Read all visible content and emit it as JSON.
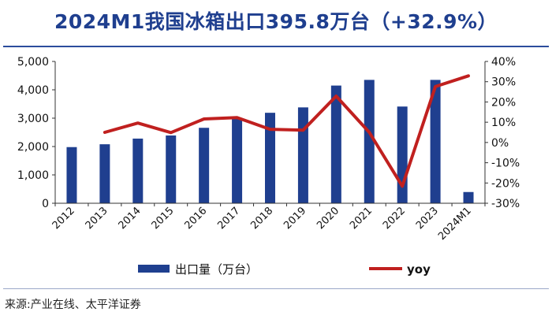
{
  "title": "2024M1我国冰箱出口395.8万台（+32.9%）",
  "source": "来源:产业在线、太平洋证券",
  "colors": {
    "bar": "#1f3f8f",
    "line": "#c0201f",
    "title": "#1f3f8f"
  },
  "chart_data": {
    "type": "bar",
    "title": "",
    "categories": [
      "2012",
      "2013",
      "2014",
      "2015",
      "2016",
      "2017",
      "2018",
      "2019",
      "2020",
      "2021",
      "2022",
      "2023",
      "2024M1"
    ],
    "series": [
      {
        "name": "出口量（万台）",
        "type": "bar",
        "axis": "left",
        "values": [
          1980,
          2080,
          2280,
          2390,
          2660,
          3010,
          3190,
          3380,
          4150,
          4350,
          3410,
          4350,
          396
        ]
      },
      {
        "name": "yoy",
        "type": "line",
        "axis": "right",
        "values": [
          null,
          5.0,
          9.6,
          4.9,
          11.6,
          12.3,
          6.5,
          6.1,
          22.9,
          5.0,
          -21.6,
          27.6,
          32.9
        ]
      }
    ],
    "y_left": {
      "ylim": [
        0,
        5000
      ],
      "ticks": [
        0,
        1000,
        2000,
        3000,
        4000,
        5000
      ],
      "tick_labels": [
        "0",
        "1,000",
        "2,000",
        "3,000",
        "4,000",
        "5,000"
      ]
    },
    "y_right": {
      "ylim": [
        -30,
        40
      ],
      "ticks": [
        -30,
        -20,
        -10,
        0,
        10,
        20,
        30,
        40
      ],
      "tick_labels": [
        "-30%",
        "-20%",
        "-10%",
        "0%",
        "10%",
        "20%",
        "30%",
        "40%"
      ]
    },
    "grid": false,
    "legend": "bottom"
  }
}
